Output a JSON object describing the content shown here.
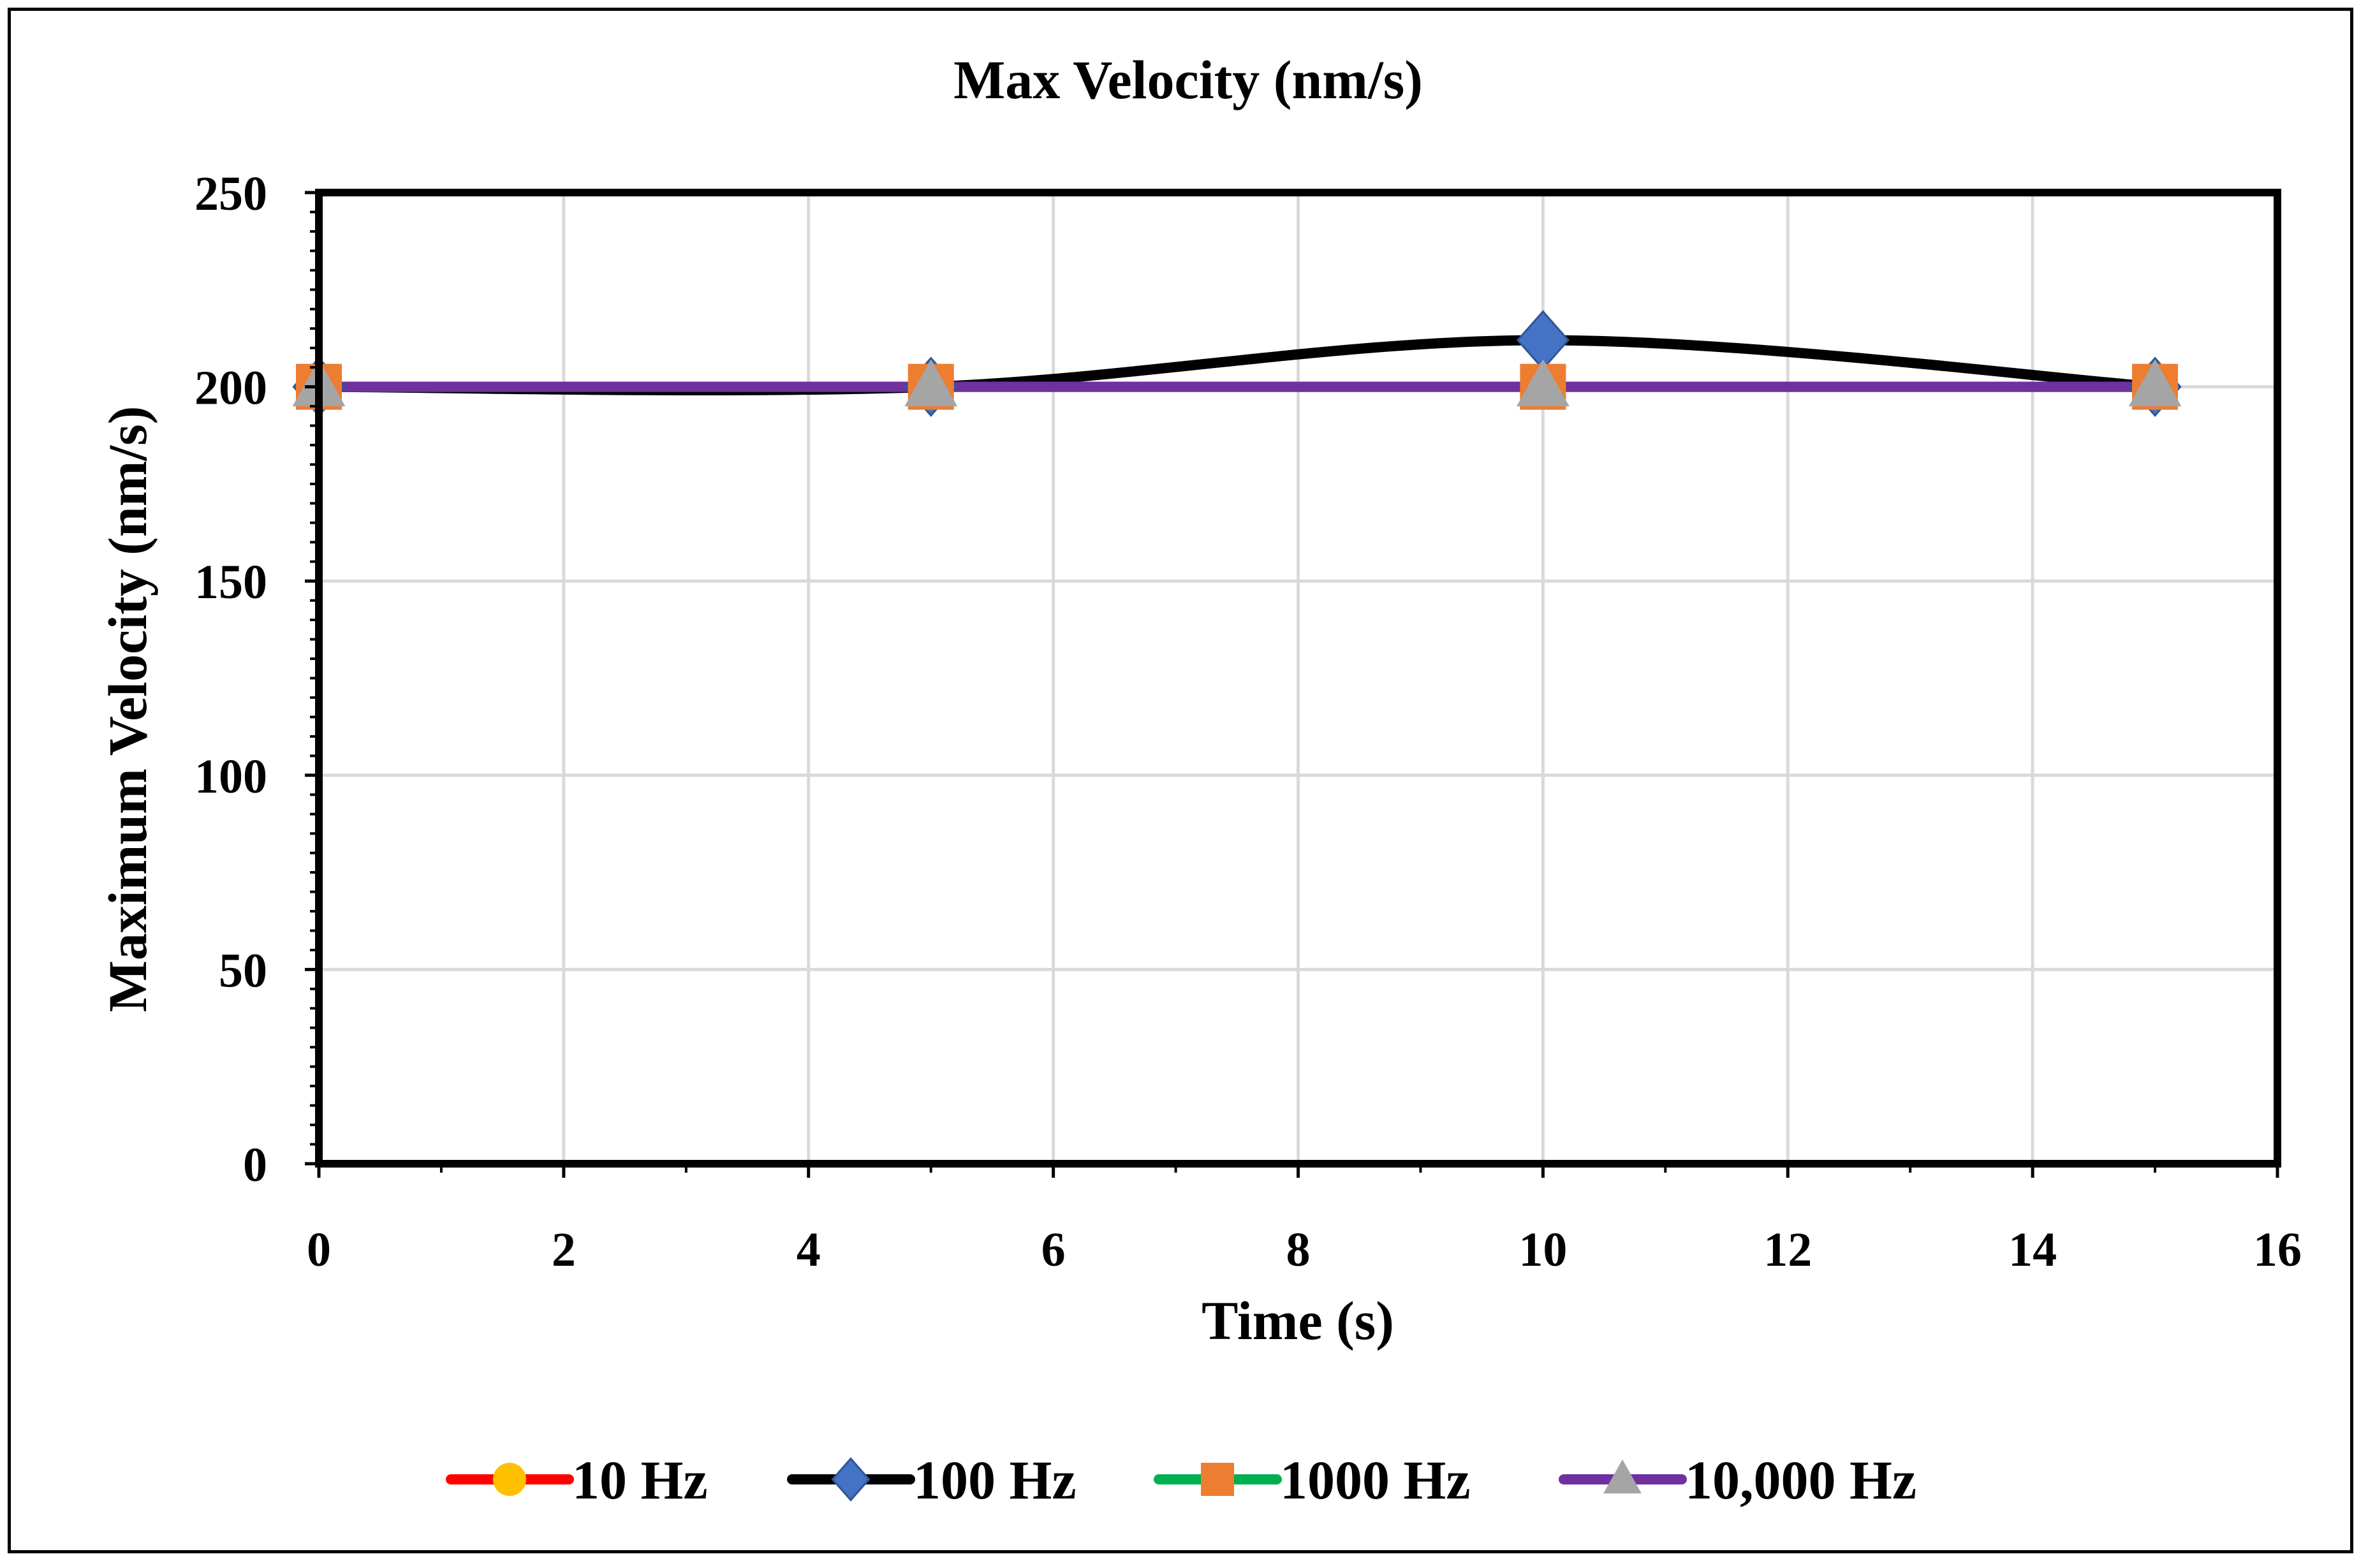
{
  "chart_data": {
    "type": "line",
    "title": "Max Velocity (nm/s)",
    "xlabel": "Time (s)",
    "ylabel": "Maximum Velocity (nm/s)",
    "xlim": [
      0,
      16
    ],
    "ylim": [
      0,
      250
    ],
    "x_ticks": [
      "0",
      "2",
      "4",
      "6",
      "8",
      "10",
      "12",
      "14",
      "16"
    ],
    "y_ticks": [
      "0",
      "50",
      "100",
      "150",
      "200",
      "250"
    ],
    "grid": true,
    "legend_position": "bottom",
    "x": [
      0,
      5,
      10,
      15
    ],
    "series": [
      {
        "name": "10 Hz",
        "values": [
          200,
          200,
          200,
          200
        ],
        "line_color": "#ff0000",
        "marker": "circle",
        "marker_color": "#ffc000"
      },
      {
        "name": "100 Hz",
        "values": [
          200,
          200,
          212,
          200
        ],
        "line_color": "#000000",
        "marker": "diamond",
        "marker_color": "#4472c4"
      },
      {
        "name": "1000 Hz",
        "values": [
          200,
          200,
          200,
          200
        ],
        "line_color": "#00b050",
        "marker": "square",
        "marker_color": "#ed7d31"
      },
      {
        "name": "10,000 Hz",
        "values": [
          200,
          200,
          200,
          200
        ],
        "line_color": "#7030a0",
        "marker": "triangle",
        "marker_color": "#a5a5a5"
      }
    ]
  }
}
